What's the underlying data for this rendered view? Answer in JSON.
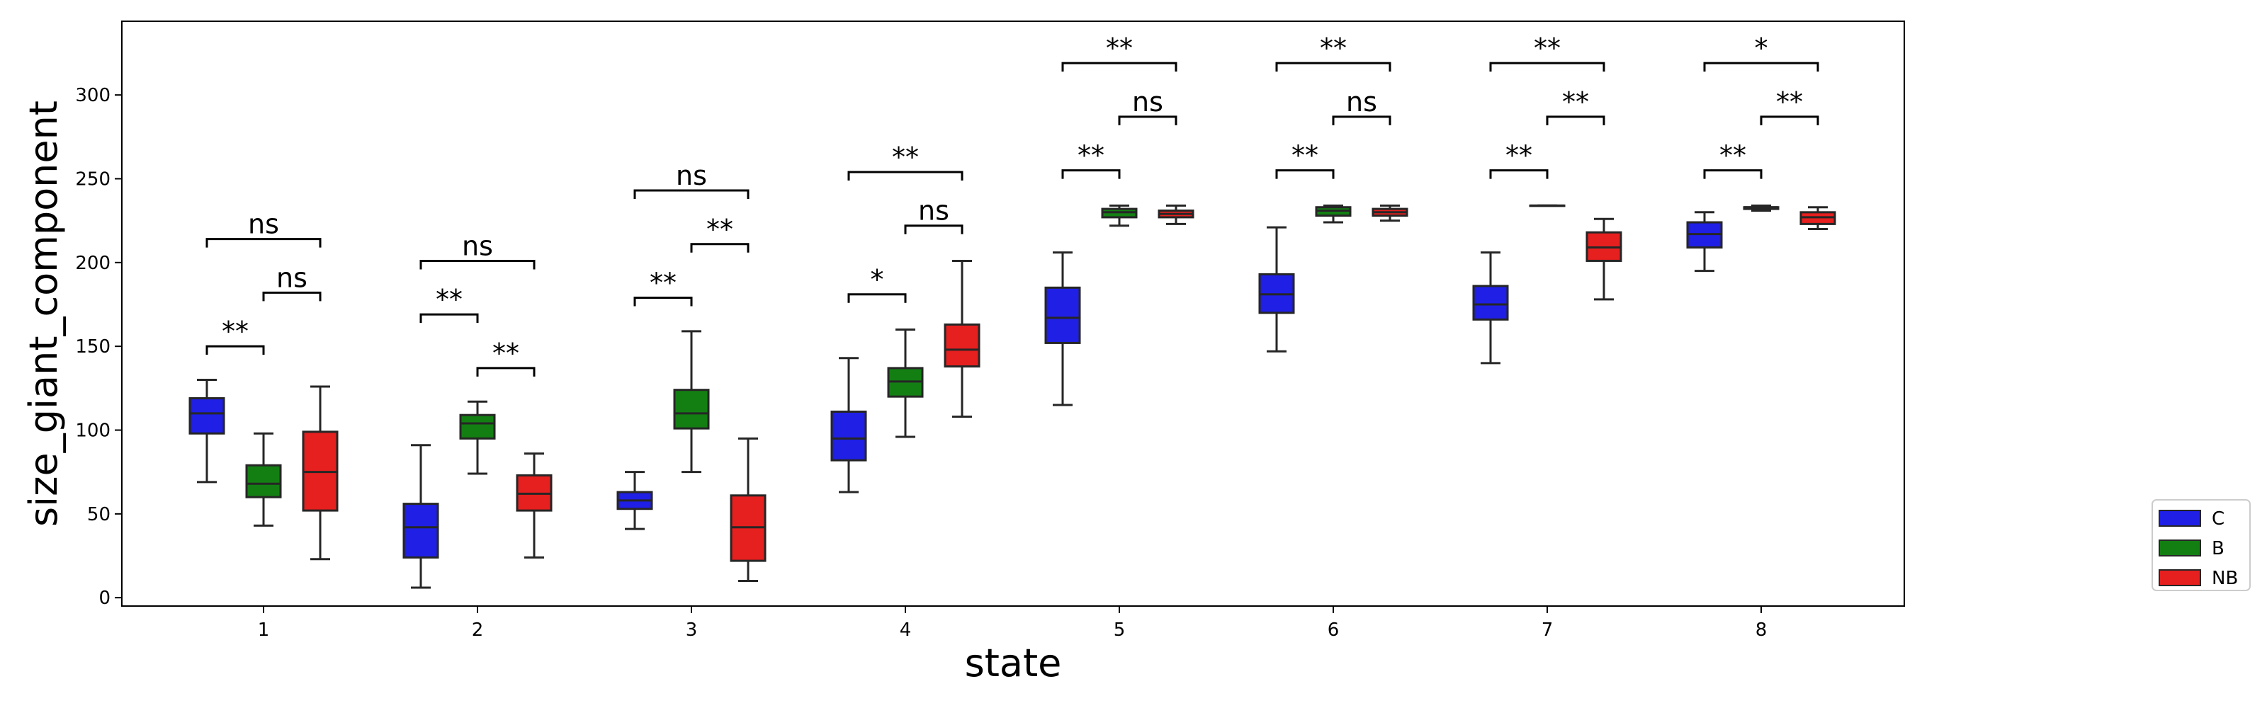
{
  "chart_data": {
    "type": "box",
    "title": "",
    "xlabel": "state",
    "ylabel": "size_giant_component",
    "ylim": [
      -5,
      344
    ],
    "yticks": [
      0,
      50,
      100,
      150,
      200,
      250,
      300
    ],
    "categories": [
      "1",
      "2",
      "3",
      "4",
      "5",
      "6",
      "7",
      "8"
    ],
    "grid": false,
    "legend_position": "lower-right outside",
    "legend": [
      "C",
      "B",
      "NB"
    ],
    "series": [
      {
        "name": "C",
        "color": "#1f1fe6",
        "boxes": [
          {
            "whislo": 69,
            "q1": 98,
            "med": 110,
            "q3": 119,
            "whishi": 130
          },
          {
            "whislo": 6,
            "q1": 24,
            "med": 42,
            "q3": 56,
            "whishi": 91
          },
          {
            "whislo": 41,
            "q1": 53,
            "med": 58,
            "q3": 63,
            "whishi": 75
          },
          {
            "whislo": 63,
            "q1": 82,
            "med": 95,
            "q3": 111,
            "whishi": 143
          },
          {
            "whislo": 115,
            "q1": 152,
            "med": 167,
            "q3": 185,
            "whishi": 206
          },
          {
            "whislo": 147,
            "q1": 170,
            "med": 181,
            "q3": 193,
            "whishi": 221
          },
          {
            "whislo": 140,
            "q1": 166,
            "med": 175,
            "q3": 186,
            "whishi": 206
          },
          {
            "whislo": 195,
            "q1": 209,
            "med": 217,
            "q3": 224,
            "whishi": 230
          }
        ]
      },
      {
        "name": "B",
        "color": "#137f13",
        "boxes": [
          {
            "whislo": 43,
            "q1": 60,
            "med": 68,
            "q3": 79,
            "whishi": 98
          },
          {
            "whislo": 74,
            "q1": 95,
            "med": 104,
            "q3": 109,
            "whishi": 117
          },
          {
            "whislo": 75,
            "q1": 101,
            "med": 110,
            "q3": 124,
            "whishi": 159
          },
          {
            "whislo": 96,
            "q1": 120,
            "med": 129,
            "q3": 137,
            "whishi": 160
          },
          {
            "whislo": 222,
            "q1": 227,
            "med": 230,
            "q3": 232,
            "whishi": 234
          },
          {
            "whislo": 224,
            "q1": 228,
            "med": 231,
            "q3": 233,
            "whishi": 234
          },
          {
            "whislo": 234,
            "q1": 234,
            "med": 234,
            "q3": 234,
            "whishi": 234
          },
          {
            "whislo": 231,
            "q1": 232,
            "med": 233,
            "q3": 233,
            "whishi": 234
          }
        ]
      },
      {
        "name": "NB",
        "color": "#e61f1f",
        "boxes": [
          {
            "whislo": 23,
            "q1": 52,
            "med": 75,
            "q3": 99,
            "whishi": 126
          },
          {
            "whislo": 24,
            "q1": 52,
            "med": 62,
            "q3": 73,
            "whishi": 86
          },
          {
            "whislo": 10,
            "q1": 22,
            "med": 42,
            "q3": 61,
            "whishi": 95
          },
          {
            "whislo": 108,
            "q1": 138,
            "med": 148,
            "q3": 163,
            "whishi": 201
          },
          {
            "whislo": 223,
            "q1": 227,
            "med": 229,
            "q3": 231,
            "whishi": 234
          },
          {
            "whislo": 225,
            "q1": 228,
            "med": 230,
            "q3": 232,
            "whishi": 234
          },
          {
            "whislo": 178,
            "q1": 201,
            "med": 209,
            "q3": 218,
            "whishi": 226
          },
          {
            "whislo": 220,
            "q1": 223,
            "med": 227,
            "q3": 230,
            "whishi": 233
          }
        ]
      }
    ],
    "annotations": [
      {
        "category": "1",
        "pair": [
          "C",
          "B"
        ],
        "label": "**",
        "y": 150
      },
      {
        "category": "1",
        "pair": [
          "B",
          "NB"
        ],
        "label": "ns",
        "y": 182
      },
      {
        "category": "1",
        "pair": [
          "C",
          "NB"
        ],
        "label": "ns",
        "y": 214
      },
      {
        "category": "2",
        "pair": [
          "C",
          "B"
        ],
        "label": "**",
        "y": 169
      },
      {
        "category": "2",
        "pair": [
          "B",
          "NB"
        ],
        "label": "**",
        "y": 137
      },
      {
        "category": "2",
        "pair": [
          "C",
          "NB"
        ],
        "label": "ns",
        "y": 201
      },
      {
        "category": "3",
        "pair": [
          "C",
          "B"
        ],
        "label": "**",
        "y": 179
      },
      {
        "category": "3",
        "pair": [
          "B",
          "NB"
        ],
        "label": "**",
        "y": 211
      },
      {
        "category": "3",
        "pair": [
          "C",
          "NB"
        ],
        "label": "ns",
        "y": 243
      },
      {
        "category": "4",
        "pair": [
          "C",
          "B"
        ],
        "label": "*",
        "y": 181
      },
      {
        "category": "4",
        "pair": [
          "B",
          "NB"
        ],
        "label": "ns",
        "y": 222
      },
      {
        "category": "4",
        "pair": [
          "C",
          "NB"
        ],
        "label": "**",
        "y": 254
      },
      {
        "category": "5",
        "pair": [
          "C",
          "B"
        ],
        "label": "**",
        "y": 255
      },
      {
        "category": "5",
        "pair": [
          "B",
          "NB"
        ],
        "label": "ns",
        "y": 287
      },
      {
        "category": "5",
        "pair": [
          "C",
          "NB"
        ],
        "label": "**",
        "y": 319
      },
      {
        "category": "6",
        "pair": [
          "C",
          "B"
        ],
        "label": "**",
        "y": 255
      },
      {
        "category": "6",
        "pair": [
          "B",
          "NB"
        ],
        "label": "ns",
        "y": 287
      },
      {
        "category": "6",
        "pair": [
          "C",
          "NB"
        ],
        "label": "**",
        "y": 319
      },
      {
        "category": "7",
        "pair": [
          "C",
          "B"
        ],
        "label": "**",
        "y": 255
      },
      {
        "category": "7",
        "pair": [
          "B",
          "NB"
        ],
        "label": "**",
        "y": 287
      },
      {
        "category": "7",
        "pair": [
          "C",
          "NB"
        ],
        "label": "**",
        "y": 319
      },
      {
        "category": "8",
        "pair": [
          "C",
          "B"
        ],
        "label": "**",
        "y": 255
      },
      {
        "category": "8",
        "pair": [
          "B",
          "NB"
        ],
        "label": "**",
        "y": 287
      },
      {
        "category": "8",
        "pair": [
          "C",
          "NB"
        ],
        "label": "*",
        "y": 319
      }
    ]
  }
}
